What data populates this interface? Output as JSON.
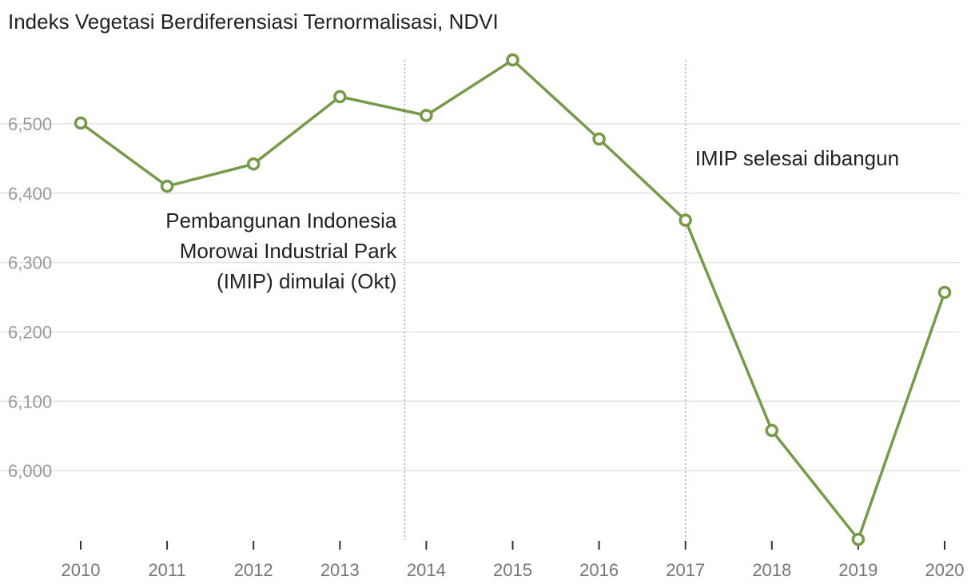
{
  "chart_title": "Indeks Vegetasi Berdiferensiasi Ternormalisasi, NDVI",
  "chart_data": {
    "type": "line",
    "title": "Indeks Vegetasi Berdiferensiasi Ternormalisasi, NDVI",
    "xlabel": "",
    "ylabel": "",
    "x": [
      2010,
      2011,
      2012,
      2013,
      2014,
      2015,
      2016,
      2017,
      2018,
      2019,
      2020
    ],
    "series": [
      {
        "values": [
          6501,
          6410,
          6442,
          6539,
          6512,
          6592,
          6478,
          6361,
          6058,
          5901,
          6257
        ]
      }
    ],
    "ylim": [
      5900,
      6592
    ],
    "yticks": [
      6000,
      6100,
      6200,
      6300,
      6400,
      6500
    ],
    "ytick_labels": [
      "6,000",
      "6,100",
      "6,200",
      "6,300",
      "6,400",
      "6,500"
    ],
    "xtick_labels": [
      "2010",
      "2011",
      "2012",
      "2013",
      "2014",
      "2015",
      "2016",
      "2017",
      "2018",
      "2019",
      "2020"
    ],
    "grid": true,
    "line_color": "#76994a",
    "annotations": [
      {
        "x": 2013.75,
        "lines": [
          "Pembangunan Indonesia",
          "Morowai Industrial Park",
          "(IMIP) dimulai (Okt)"
        ],
        "align": "right"
      },
      {
        "x": 2017,
        "lines": [
          "IMIP selesai dibangun"
        ],
        "align": "left"
      }
    ]
  }
}
